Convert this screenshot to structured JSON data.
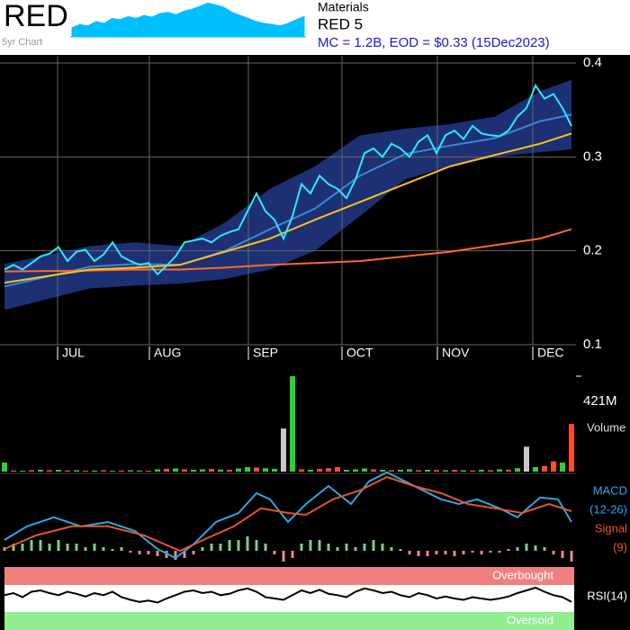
{
  "header": {
    "ticker": "RED",
    "five_year_label": "5yr Chart",
    "five_year_values": [
      0.15,
      0.2,
      0.18,
      0.25,
      0.22,
      0.3,
      0.28,
      0.33,
      0.3,
      0.35,
      0.32,
      0.38,
      0.4,
      0.36,
      0.42,
      0.45,
      0.5,
      0.55,
      0.52,
      0.48,
      0.4,
      0.35,
      0.3,
      0.25,
      0.22,
      0.2,
      0.18,
      0.22,
      0.28,
      0.33
    ],
    "five_year_ylim": [
      0,
      0.6
    ],
    "five_year_color": "#00bfff",
    "sector": "Materials",
    "name": "RED 5",
    "summary": "MC = 1.2B, EOD = $0.33 (15Dec2023)"
  },
  "chart_data": [
    {
      "type": "line",
      "xlim": [
        0,
        63
      ],
      "xticks": [
        {
          "value": 5.9,
          "label": "JUL"
        },
        {
          "value": 16.1,
          "label": "AUG"
        },
        {
          "value": 27.1,
          "label": "SEP"
        },
        {
          "value": 37.5,
          "label": "OCT"
        },
        {
          "value": 48.1,
          "label": "NOV"
        },
        {
          "value": 58.7,
          "label": "DEC"
        }
      ],
      "ylim": [
        0.1,
        0.4
      ],
      "yticks": [
        0.1,
        0.2,
        0.3,
        0.4
      ],
      "grid": true,
      "band": {
        "x": [
          0,
          9.5,
          14.5,
          19.5,
          24.5,
          29.5,
          34.5,
          39.5,
          44.5,
          49.5,
          54.5,
          59.5,
          63
        ],
        "upper": [
          0.186,
          0.205,
          0.209,
          0.205,
          0.23,
          0.266,
          0.29,
          0.323,
          0.33,
          0.335,
          0.343,
          0.37,
          0.382
        ],
        "lower": [
          0.137,
          0.16,
          0.163,
          0.165,
          0.17,
          0.18,
          0.2,
          0.237,
          0.276,
          0.29,
          0.3,
          0.305,
          0.308
        ],
        "color": "#1f3580"
      },
      "series": [
        {
          "color": "#3d86d8",
          "x": [
            0,
            9.5,
            14.5,
            19.5,
            24.5,
            29.5,
            34.5,
            39.5,
            44.5,
            49.5,
            54.5,
            59.5,
            63
          ],
          "values": [
            0.162,
            0.183,
            0.186,
            0.185,
            0.2,
            0.223,
            0.245,
            0.28,
            0.303,
            0.312,
            0.32,
            0.338,
            0.345
          ]
        },
        {
          "color": "#ff6a2a",
          "x": [
            0,
            9.5,
            14.5,
            19.5,
            24.5,
            29.5,
            34.5,
            39.5,
            44.5,
            49.5,
            54.5,
            59.5,
            63
          ],
          "values": [
            0.178,
            0.179,
            0.18,
            0.18,
            0.182,
            0.185,
            0.187,
            0.189,
            0.194,
            0.199,
            0.206,
            0.213,
            0.223
          ]
        },
        {
          "color": "#ffc21a",
          "x": [
            0,
            9.5,
            14.5,
            19.5,
            24.5,
            29.5,
            34.5,
            39.5,
            44.5,
            49.5,
            54.5,
            59.5,
            63
          ],
          "values": [
            0.166,
            0.18,
            0.182,
            0.185,
            0.199,
            0.213,
            0.233,
            0.252,
            0.271,
            0.29,
            0.302,
            0.314,
            0.325
          ]
        },
        {
          "color": "#2ee8ff",
          "values": [
            0.18,
            0.185,
            0.18,
            0.187,
            0.194,
            0.197,
            0.204,
            0.189,
            0.199,
            0.201,
            0.189,
            0.196,
            0.209,
            0.194,
            0.189,
            0.185,
            0.187,
            0.175,
            0.184,
            0.194,
            0.209,
            0.211,
            0.213,
            0.209,
            0.216,
            0.22,
            0.223,
            0.242,
            0.261,
            0.242,
            0.233,
            0.213,
            0.237,
            0.271,
            0.261,
            0.28,
            0.271,
            0.266,
            0.256,
            0.276,
            0.304,
            0.309,
            0.3,
            0.314,
            0.309,
            0.3,
            0.316,
            0.323,
            0.304,
            0.323,
            0.328,
            0.319,
            0.333,
            0.325,
            0.323,
            0.322,
            0.328,
            0.343,
            0.352,
            0.376,
            0.362,
            0.367,
            0.352,
            0.333
          ]
        }
      ]
    },
    {
      "type": "bar",
      "label": "Volume",
      "xlim": [
        0,
        63
      ],
      "ylim": [
        0,
        421
      ],
      "yticks": [
        {
          "value": 421,
          "label": "421M"
        }
      ],
      "values": [
        40,
        5,
        4,
        6,
        8,
        6,
        8,
        5,
        6,
        4,
        5,
        6,
        4,
        5,
        6,
        5,
        4,
        10,
        12,
        14,
        10,
        8,
        10,
        12,
        9,
        8,
        14,
        20,
        18,
        15,
        12,
        190,
        421,
        10,
        8,
        12,
        15,
        20,
        8,
        10,
        14,
        10,
        8,
        6,
        8,
        10,
        6,
        8,
        7,
        6,
        8,
        6,
        5,
        8,
        6,
        10,
        8,
        15,
        110,
        20,
        25,
        45,
        40,
        210
      ],
      "colors": [
        "#33cc33",
        "#ff4d2e",
        "#33cc33",
        "#ff4d2e",
        "#33cc33",
        "#ff4d2e",
        "#33cc33",
        "#ff4d2e",
        "#33cc33",
        "#ff4d2e",
        "#33cc33",
        "#ff4d2e",
        "#33cc33",
        "#ff4d2e",
        "#33cc33",
        "#33cc33",
        "#ff4d2e",
        "#33cc33",
        "#ff4d2e",
        "#33cc33",
        "#ff4d2e",
        "#33cc33",
        "#33cc33",
        "#ff4d2e",
        "#33cc33",
        "#ff4d2e",
        "#33cc33",
        "#33cc33",
        "#ff4d2e",
        "#33cc33",
        "#33cc33",
        "#c8c8c8",
        "#33cc33",
        "#ff4d2e",
        "#33cc33",
        "#ff4d2e",
        "#ff4d2e",
        "#ff4d2e",
        "#33cc33",
        "#33cc33",
        "#33cc33",
        "#ff4d2e",
        "#33cc33",
        "#ff4d2e",
        "#33cc33",
        "#33cc33",
        "#ff4d2e",
        "#33cc33",
        "#ff4d2e",
        "#33cc33",
        "#ff4d2e",
        "#33cc33",
        "#ff4d2e",
        "#33cc33",
        "#ff4d2e",
        "#33cc33",
        "#ff4d2e",
        "#33cc33",
        "#c8c8c8",
        "#33cc33",
        "#ff4d2e",
        "#ff4d2e",
        "#33cc33",
        "#ff4d2e"
      ]
    },
    {
      "type": "macd",
      "xlim": [
        0,
        63
      ],
      "ylim": [
        -0.004,
        0.022
      ],
      "histogram": {
        "up_color": "#7fcf7f",
        "down_color": "#f08a8a",
        "values": [
          0.001,
          0.002,
          0.002,
          0.003,
          0.003,
          0.002,
          0.003,
          0.002,
          0.002,
          0.001,
          0.002,
          0.001,
          0.0005,
          0.001,
          -0.0005,
          -0.001,
          -0.001,
          -0.0015,
          -0.002,
          -0.0025,
          -0.002,
          -0.001,
          0.001,
          0.002,
          0.002,
          0.003,
          0.003,
          0.004,
          0.003,
          0.002,
          -0.001,
          -0.003,
          -0.002,
          0.002,
          0.003,
          0.003,
          0.002,
          0.001,
          0.002,
          0.001,
          0.002,
          0.003,
          0.002,
          0.001,
          0.0005,
          -0.001,
          -0.0015,
          -0.0015,
          -0.001,
          -0.001,
          -0.0015,
          -0.001,
          -0.0005,
          -0.001,
          -0.0005,
          -0.0005,
          0.0005,
          0.001,
          0.002,
          0.0015,
          0.001,
          -0.001,
          -0.002,
          -0.003
        ]
      },
      "series": [
        {
          "name": "MACD",
          "subtitle": "(12-26)",
          "color": "#2aa7e8",
          "x": [
            0,
            2.5,
            5.5,
            8.5,
            11.5,
            14.5,
            17,
            19,
            21,
            23.5,
            26,
            28,
            29.5,
            31.5,
            33.5,
            36,
            38.5,
            40.5,
            42.5,
            44.5,
            46.5,
            48.5,
            50.5,
            52.5,
            55,
            57,
            59.5,
            61.5,
            63
          ],
          "values": [
            0.003,
            0.0068,
            0.0093,
            0.0068,
            0.008,
            0.0055,
            0.0005,
            -0.002,
            0.0018,
            0.008,
            0.0105,
            0.016,
            0.0143,
            0.008,
            0.013,
            0.018,
            0.013,
            0.0193,
            0.0218,
            0.0193,
            0.0168,
            0.0143,
            0.013,
            0.0143,
            0.0118,
            0.0093,
            0.0148,
            0.0143,
            0.008
          ]
        },
        {
          "name": "Signal",
          "subtitle": "(9)",
          "color": "#e8552a",
          "x": [
            0,
            3.5,
            7.5,
            11.5,
            15.5,
            19.5,
            22.5,
            25.5,
            28.5,
            31.5,
            33.5,
            36.5,
            39.5,
            42.5,
            45.5,
            48.5,
            51.5,
            54.5,
            57.5,
            60.5,
            63
          ],
          "values": [
            0.0005,
            0.0043,
            0.0068,
            0.0068,
            0.0043,
            0,
            0.0035,
            0.0068,
            0.0118,
            0.0105,
            0.01,
            0.0143,
            0.0168,
            0.0205,
            0.018,
            0.016,
            0.013,
            0.0118,
            0.0105,
            0.013,
            0.011
          ]
        }
      ]
    },
    {
      "type": "rsi",
      "label": "RSI(14)",
      "xlim": [
        0,
        63
      ],
      "ylim": [
        0,
        100
      ],
      "color": "#000000",
      "bands": [
        {
          "label": "Overbought",
          "from": 70,
          "to": 100,
          "color": "#f08080"
        },
        {
          "label": "Oversold",
          "from": 0,
          "to": 30,
          "color": "#90ee90"
        }
      ],
      "values": [
        55,
        58,
        52,
        60,
        62,
        58,
        55,
        60,
        57,
        53,
        58,
        55,
        60,
        52,
        48,
        45,
        47,
        44,
        50,
        55,
        60,
        62,
        58,
        60,
        55,
        57,
        62,
        65,
        60,
        52,
        50,
        48,
        55,
        62,
        58,
        63,
        57,
        55,
        52,
        60,
        65,
        62,
        58,
        60,
        55,
        52,
        58,
        55,
        50,
        53,
        50,
        48,
        52,
        50,
        48,
        50,
        53,
        58,
        62,
        66,
        60,
        55,
        52,
        45
      ]
    }
  ]
}
